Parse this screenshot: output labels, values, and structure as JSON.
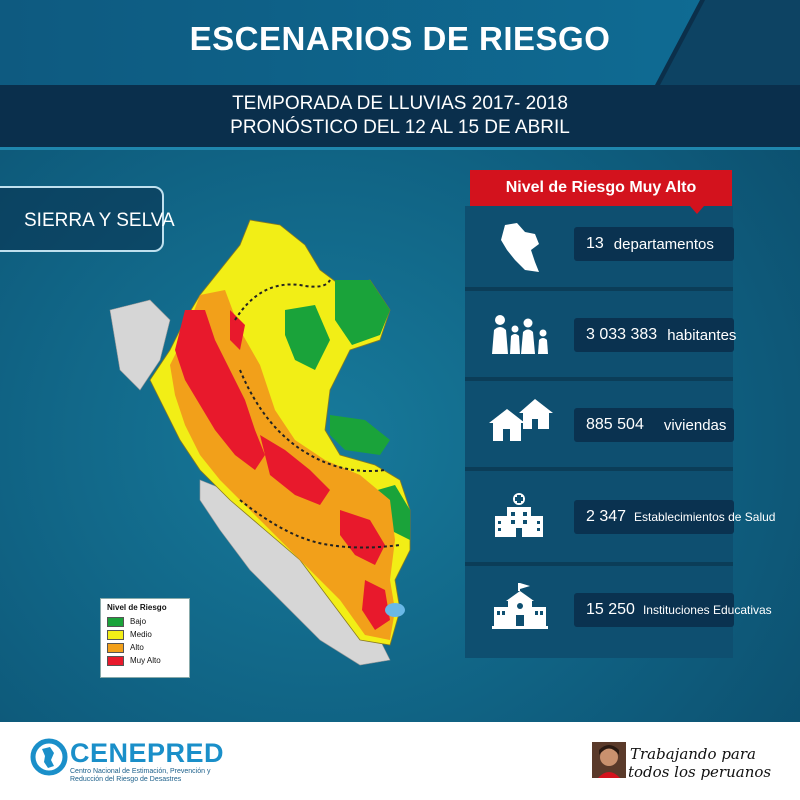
{
  "header": {
    "title": "ESCENARIOS DE RIESGO",
    "subtitle_line1": "TEMPORADA DE LLUVIAS 2017- 2018",
    "subtitle_line2": "PRONÓSTICO DEL 12 AL 15 DE ABRIL"
  },
  "region": {
    "label": "SIERRA Y SELVA"
  },
  "legend": {
    "title": "Nivel de Riesgo",
    "items": [
      {
        "label": "Bajo",
        "color": "#1aa33a"
      },
      {
        "label": "Medio",
        "color": "#f2ee16"
      },
      {
        "label": "Alto",
        "color": "#f2a01a"
      },
      {
        "label": "Muy Alto",
        "color": "#e8192c"
      }
    ]
  },
  "panel": {
    "header": "Nivel de Riesgo Muy Alto",
    "accent_color": "#d3121d",
    "stats": [
      {
        "icon": "peru-map-icon",
        "value": "13",
        "label": "departamentos"
      },
      {
        "icon": "family-icon",
        "value": "3 033 383",
        "label": "habitantes"
      },
      {
        "icon": "houses-icon",
        "value": "885 504",
        "label": "viviendas"
      },
      {
        "icon": "hospital-icon",
        "value": "2 347",
        "label": "Establecimientos de Salud"
      },
      {
        "icon": "school-icon",
        "value": "15 250",
        "label": "Instituciones Educativas"
      }
    ]
  },
  "footer": {
    "org_name": "CENEPRED",
    "org_description": "Centro Nacional de Estimación, Prevención y Reducción del Riesgo de Desastres",
    "slogan_line1": "Trabajando para",
    "slogan_line2": "todos los peruanos"
  }
}
